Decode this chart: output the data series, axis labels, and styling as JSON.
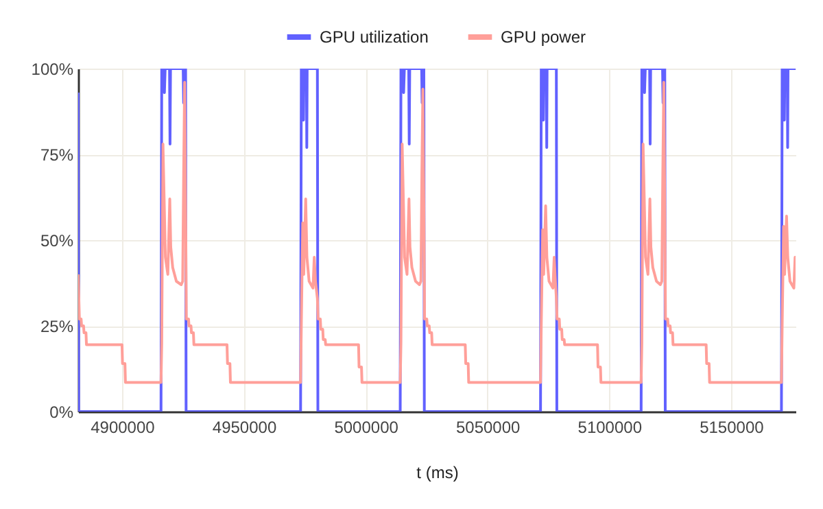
{
  "chart_data": {
    "type": "line",
    "xlabel": "t (ms)",
    "legend": "top",
    "grid": true,
    "xlim": [
      4882000,
      5176500
    ],
    "xticks": [
      4900000,
      4950000,
      5000000,
      5050000,
      5100000,
      5150000
    ],
    "ylim": [
      0,
      100
    ],
    "yticks": [
      {
        "value": 0,
        "label": "0%"
      },
      {
        "value": 25,
        "label": "25%"
      },
      {
        "value": 50,
        "label": "50%"
      },
      {
        "value": 75,
        "label": "75%"
      },
      {
        "value": 100,
        "label": "100%"
      }
    ],
    "series": [
      {
        "name": "GPU utilization",
        "color": "#6161ff",
        "x": [
          4882000,
          4882200,
          4916000,
          4916300,
          4917200,
          4917400,
          4917700,
          4919500,
          4919700,
          4919900,
          4925100,
          4925300,
          4925500,
          4926100,
          4926300,
          4973300,
          4973600,
          4974300,
          4974500,
          4974700,
          4975700,
          4975850,
          4976000,
          4980200,
          4980400,
          5014200,
          5014500,
          5015400,
          5015600,
          5015900,
          5017700,
          5017900,
          5018100,
          5023000,
          5023200,
          5023400,
          5023900,
          5024100,
          5071800,
          5072100,
          5072800,
          5073000,
          5073200,
          5074200,
          5074350,
          5074500,
          5078300,
          5078500,
          5113100,
          5113400,
          5114300,
          5114500,
          5114800,
          5116600,
          5116800,
          5117000,
          5121900,
          5122100,
          5122300,
          5122800,
          5123000,
          5170700,
          5171000,
          5171700,
          5171900,
          5172100,
          5173100,
          5173250,
          5173400,
          5176500
        ],
        "values": [
          93,
          0,
          0,
          100,
          100,
          93,
          100,
          100,
          78,
          100,
          100,
          90,
          100,
          100,
          0,
          0,
          100,
          100,
          85,
          100,
          100,
          77,
          100,
          100,
          0,
          0,
          100,
          100,
          93,
          100,
          100,
          78,
          100,
          100,
          90,
          100,
          100,
          0,
          0,
          100,
          100,
          85,
          100,
          100,
          77,
          100,
          100,
          0,
          0,
          100,
          100,
          93,
          100,
          100,
          78,
          100,
          100,
          90,
          100,
          100,
          0,
          0,
          100,
          100,
          85,
          100,
          100,
          77,
          100,
          100
        ]
      },
      {
        "name": "GPU power",
        "color": "#ff9f99",
        "x": [
          4882000,
          4882500,
          4883200,
          4883400,
          4884200,
          4884400,
          4885200,
          4885400,
          4900000,
          4900200,
          4901200,
          4901400,
          4916000,
          4916300,
          4916800,
          4917800,
          4918800,
          4919600,
          4920000,
          4920800,
          4922300,
          4924300,
          4924900,
          4925300,
          4925700,
          4926100,
          4926400,
          4927300,
          4927500,
          4928300,
          4928500,
          4929300,
          4929500,
          4943100,
          4943300,
          4944300,
          4944500,
          4973300,
          4973600,
          4974200,
          4974600,
          4975400,
          4975900,
          4976800,
          4978400,
          4978900,
          4979400,
          4980200,
          4980500,
          4981400,
          4981600,
          4982400,
          4982600,
          4983400,
          4983600,
          4997100,
          4997300,
          4998300,
          4998500,
          5014200,
          5014500,
          5015000,
          5016000,
          5017000,
          5017800,
          5018200,
          5019000,
          5020500,
          5022100,
          5022700,
          5023100,
          5023500,
          5023900,
          5024200,
          5025100,
          5025300,
          5026100,
          5026300,
          5027100,
          5027300,
          5040900,
          5041100,
          5042100,
          5042300,
          5071800,
          5072100,
          5072700,
          5073100,
          5073900,
          5074400,
          5075300,
          5076900,
          5077400,
          5077900,
          5078300,
          5078600,
          5079500,
          5079700,
          5080500,
          5080700,
          5081500,
          5081700,
          5095200,
          5095400,
          5096400,
          5096600,
          5113100,
          5113400,
          5113900,
          5114900,
          5115900,
          5116700,
          5117100,
          5117900,
          5119400,
          5121000,
          5121600,
          5122000,
          5122400,
          5122800,
          5123100,
          5124000,
          5124200,
          5125000,
          5125200,
          5126000,
          5126200,
          5139800,
          5140000,
          5141000,
          5141200,
          5170700,
          5171000,
          5171600,
          5172000,
          5172800,
          5173300,
          5174200,
          5175800,
          5176300,
          5176500
        ],
        "values": [
          40,
          27,
          27,
          25,
          25,
          23,
          23,
          19.5,
          19.5,
          14,
          14,
          8.5,
          8.5,
          20,
          78,
          45,
          40,
          62,
          48,
          42,
          38,
          37,
          38,
          70,
          96,
          60,
          27,
          27,
          25,
          25,
          23,
          23,
          19.5,
          19.5,
          14,
          14,
          8.5,
          8.5,
          25,
          55,
          40,
          62,
          45,
          38,
          36,
          45,
          38,
          33,
          27,
          27,
          24,
          24,
          21,
          21,
          19.5,
          19.5,
          13,
          13,
          8.5,
          8.5,
          20,
          78,
          45,
          40,
          62,
          48,
          42,
          38,
          37,
          38,
          70,
          94,
          60,
          27,
          27,
          25,
          25,
          23,
          23,
          19.5,
          19.5,
          14,
          14,
          8.5,
          8.5,
          25,
          53,
          40,
          60,
          45,
          38,
          36,
          45,
          38,
          33,
          27,
          27,
          24,
          24,
          21,
          21,
          19.5,
          19.5,
          13,
          13,
          8.5,
          8.5,
          20,
          78,
          45,
          40,
          62,
          48,
          42,
          38,
          37,
          38,
          70,
          96,
          60,
          27,
          27,
          25,
          25,
          23,
          23,
          19.5,
          19.5,
          14,
          14,
          8.5,
          8.5,
          25,
          54,
          40,
          57,
          45,
          38,
          36,
          45,
          42
        ]
      }
    ]
  }
}
